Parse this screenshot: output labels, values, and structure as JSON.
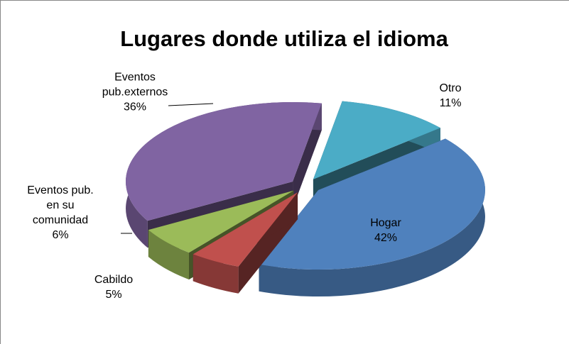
{
  "chart_data": {
    "type": "pie",
    "title": "Lugares donde utiliza el idioma",
    "categories": [
      "Otro",
      "Hogar",
      "Cabildo",
      "Eventos pub. en su comunidad",
      "Eventos pub.externos"
    ],
    "values": [
      11,
      42,
      5,
      6,
      36
    ],
    "value_labels": [
      "11%",
      "42%",
      "5%",
      "6%",
      "36%"
    ],
    "colors": [
      "#4bacc6",
      "#4f81bd",
      "#c0504d",
      "#9bbb59",
      "#8064a2"
    ]
  }
}
